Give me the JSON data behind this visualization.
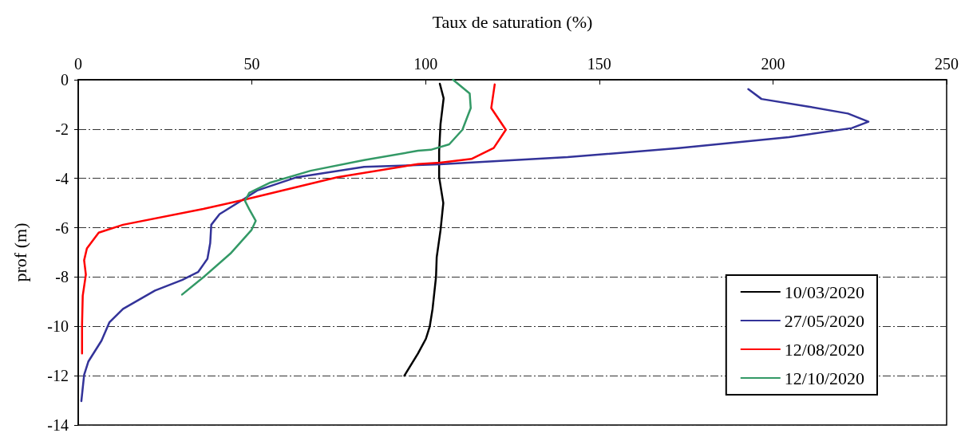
{
  "chart_data": {
    "type": "line",
    "xlabel": "Taux de saturation (%)",
    "ylabel": "prof (m)",
    "xlim": [
      0,
      250
    ],
    "xticks": [
      0,
      50,
      100,
      150,
      200,
      250
    ],
    "ylim": [
      -14,
      0
    ],
    "yticks": [
      -14,
      -12,
      -10,
      -8,
      -6,
      -4,
      -2,
      0
    ],
    "grid": "y",
    "legend": "bottom right",
    "marker": "none",
    "line_style": "solid",
    "series": [
      {
        "name": "10/03/2020",
        "color": "#000000",
        "x": [
          104.1,
          105.2,
          104.3,
          103.9,
          103.9,
          105.1,
          104.3,
          103.2,
          103.0,
          102.0,
          101.2,
          100.1,
          97.8,
          93.9
        ],
        "values": [
          -0.16,
          -0.75,
          -1.8,
          -2.9,
          -3.95,
          -5.0,
          -6.1,
          -7.2,
          -8.0,
          -9.3,
          -10.0,
          -10.5,
          -11.1,
          -12.0
        ]
      },
      {
        "name": "27/05/2020",
        "color": "#333399",
        "x": [
          192.9,
          196.7,
          209.9,
          221.6,
          227.5,
          222.7,
          204.6,
          172.8,
          140.9,
          104.2,
          82.3,
          63.0,
          51.5,
          48.0,
          40.7,
          38.3,
          38.0,
          37.2,
          34.5,
          29.9,
          22.1,
          12.9,
          9.0,
          6.7,
          2.9,
          1.7,
          0.9
        ],
        "values": [
          -0.38,
          -0.78,
          -1.08,
          -1.37,
          -1.7,
          -1.96,
          -2.33,
          -2.77,
          -3.14,
          -3.43,
          -3.53,
          -3.95,
          -4.49,
          -4.81,
          -5.45,
          -5.88,
          -6.62,
          -7.26,
          -7.8,
          -8.12,
          -8.55,
          -9.29,
          -9.83,
          -10.58,
          -11.43,
          -11.97,
          -13.03
        ]
      },
      {
        "name": "12/08/2020",
        "color": "#ff0000",
        "x": [
          119.9,
          118.9,
          123.1,
          119.6,
          113.2,
          104.2,
          97.8,
          74.6,
          48.0,
          36.0,
          12.9,
          5.9,
          2.5,
          1.7,
          2.2,
          1.3,
          1.1,
          1.1
        ],
        "values": [
          -0.19,
          -1.15,
          -2.03,
          -2.77,
          -3.21,
          -3.36,
          -3.42,
          -3.95,
          -4.86,
          -5.24,
          -5.88,
          -6.2,
          -6.84,
          -7.32,
          -7.9,
          -8.76,
          -9.94,
          -11.1
        ]
      },
      {
        "name": "12/10/2020",
        "color": "#339966",
        "x": [
          107.9,
          112.7,
          113.0,
          110.6,
          106.8,
          101.5,
          97.8,
          82.3,
          66.9,
          55.3,
          49.2,
          48.0,
          49.2,
          51.1,
          49.9,
          43.8,
          36.0,
          29.9
        ],
        "values": [
          0,
          -0.56,
          -1.15,
          -2.03,
          -2.62,
          -2.84,
          -2.88,
          -3.26,
          -3.69,
          -4.17,
          -4.59,
          -4.91,
          -5.24,
          -5.72,
          -6.09,
          -7.05,
          -8.01,
          -8.71
        ]
      }
    ]
  }
}
